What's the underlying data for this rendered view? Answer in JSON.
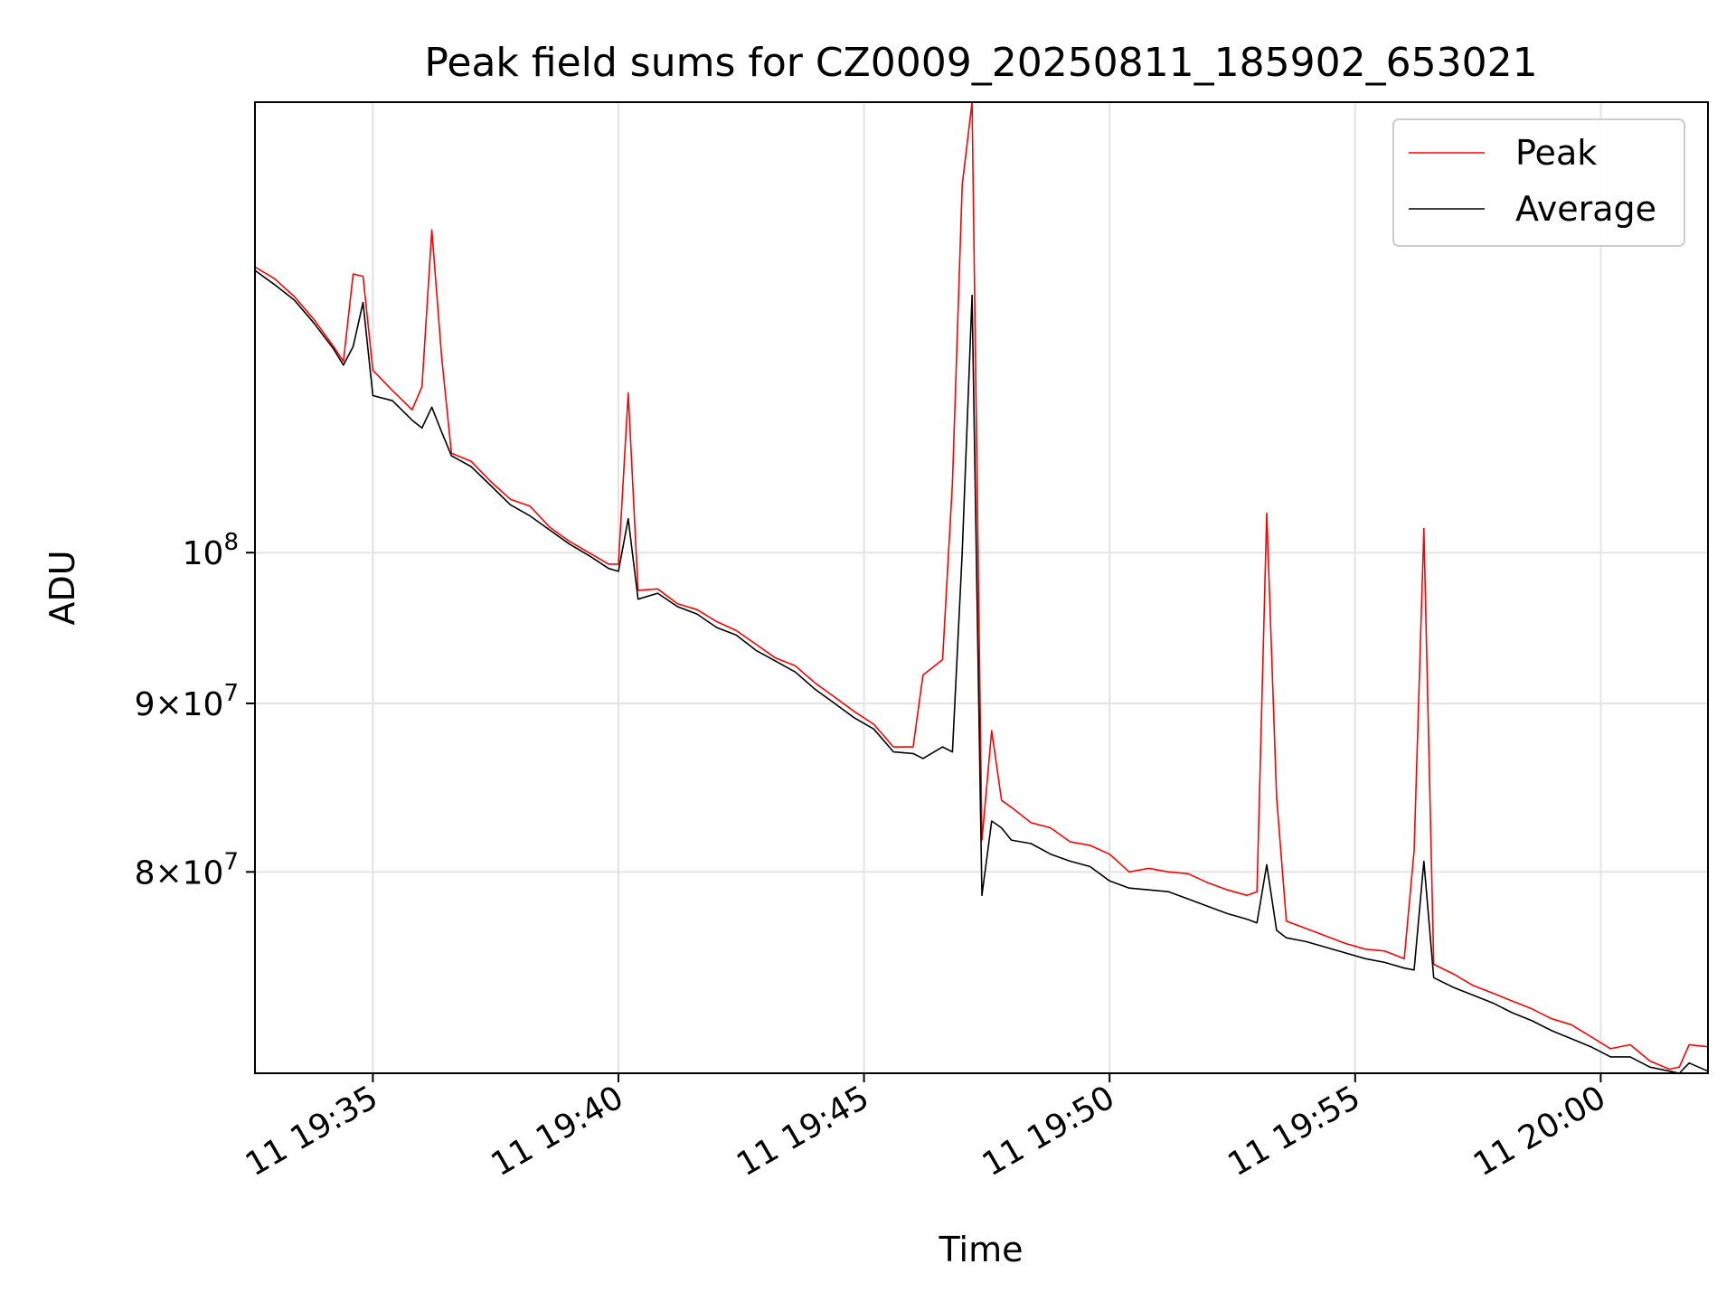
{
  "chart_data": {
    "type": "line",
    "title": "Peak field sums for CZ0009_20250811_185902_653021",
    "xlabel": "Time",
    "ylabel": "ADU",
    "yscale": "log",
    "grid": true,
    "legend_position": "top-right",
    "xlim": [
      "11 19:32:36",
      "11 20:02:11"
    ],
    "ylim": [
      69500000,
      137000000
    ],
    "x_ticks": [
      "11 19:35",
      "11 19:40",
      "11 19:45",
      "11 19:50",
      "11 19:55",
      "11 20:00"
    ],
    "y_ticks": [
      {
        "value": 100000000,
        "base": "10",
        "exp": "8"
      },
      {
        "value": 90000000,
        "mantissa": "9",
        "base": "10",
        "exp": "7"
      },
      {
        "value": 80000000,
        "mantissa": "8",
        "base": "10",
        "exp": "7"
      }
    ],
    "series": [
      {
        "name": "Peak",
        "color": "#ff0000",
        "points": [
          [
            "11 19:32:36",
            122100000
          ],
          [
            "11 19:33:00",
            121100000
          ],
          [
            "11 19:33:24",
            119600000
          ],
          [
            "11 19:33:48",
            117700000
          ],
          [
            "11 19:34:12",
            115500000
          ],
          [
            "11 19:34:24",
            114300000
          ],
          [
            "11 19:34:36",
            121500000
          ],
          [
            "11 19:34:48",
            121300000
          ],
          [
            "11 19:35:00",
            113600000
          ],
          [
            "11 19:35:24",
            112000000
          ],
          [
            "11 19:35:48",
            110500000
          ],
          [
            "11 19:36:00",
            112300000
          ],
          [
            "11 19:36:12",
            125300000
          ],
          [
            "11 19:36:24",
            114700000
          ],
          [
            "11 19:36:36",
            107200000
          ],
          [
            "11 19:37:00",
            106600000
          ],
          [
            "11 19:37:24",
            105100000
          ],
          [
            "11 19:37:48",
            103800000
          ],
          [
            "11 19:38:12",
            103300000
          ],
          [
            "11 19:38:36",
            101800000
          ],
          [
            "11 19:39:00",
            100800000
          ],
          [
            "11 19:39:24",
            100000000
          ],
          [
            "11 19:39:48",
            99200000
          ],
          [
            "11 19:40:00",
            99200000
          ],
          [
            "11 19:40:12",
            111800000
          ],
          [
            "11 19:40:24",
            97400000
          ],
          [
            "11 19:40:48",
            97500000
          ],
          [
            "11 19:41:12",
            96500000
          ],
          [
            "11 19:41:36",
            96100000
          ],
          [
            "11 19:42:00",
            95300000
          ],
          [
            "11 19:42:24",
            94700000
          ],
          [
            "11 19:42:48",
            93800000
          ],
          [
            "11 19:43:12",
            92900000
          ],
          [
            "11 19:43:36",
            92400000
          ],
          [
            "11 19:44:00",
            91300000
          ],
          [
            "11 19:44:24",
            90400000
          ],
          [
            "11 19:44:48",
            89500000
          ],
          [
            "11 19:45:12",
            88700000
          ],
          [
            "11 19:45:36",
            87300000
          ],
          [
            "11 19:46:00",
            87300000
          ],
          [
            "11 19:46:12",
            91800000
          ],
          [
            "11 19:46:36",
            92800000
          ],
          [
            "11 19:46:48",
            105000000
          ],
          [
            "11 19:47:00",
            129300000
          ],
          [
            "11 19:47:12",
            137000000
          ],
          [
            "11 19:47:24",
            81800000
          ],
          [
            "11 19:47:36",
            88300000
          ],
          [
            "11 19:47:48",
            84100000
          ],
          [
            "11 19:48:00",
            83700000
          ],
          [
            "11 19:48:24",
            82800000
          ],
          [
            "11 19:48:48",
            82500000
          ],
          [
            "11 19:49:12",
            81700000
          ],
          [
            "11 19:49:36",
            81500000
          ],
          [
            "11 19:50:00",
            81000000
          ],
          [
            "11 19:50:24",
            80000000
          ],
          [
            "11 19:50:48",
            80200000
          ],
          [
            "11 19:51:12",
            80000000
          ],
          [
            "11 19:51:36",
            79900000
          ],
          [
            "11 19:52:00",
            79400000
          ],
          [
            "11 19:52:24",
            79000000
          ],
          [
            "11 19:52:48",
            78700000
          ],
          [
            "11 19:53:00",
            78900000
          ],
          [
            "11 19:53:12",
            102800000
          ],
          [
            "11 19:53:24",
            84300000
          ],
          [
            "11 19:53:36",
            77300000
          ],
          [
            "11 19:54:00",
            76900000
          ],
          [
            "11 19:54:24",
            76500000
          ],
          [
            "11 19:54:48",
            76100000
          ],
          [
            "11 19:55:12",
            75800000
          ],
          [
            "11 19:55:36",
            75700000
          ],
          [
            "11 19:56:00",
            75300000
          ],
          [
            "11 19:56:12",
            81200000
          ],
          [
            "11 19:56:24",
            101700000
          ],
          [
            "11 19:56:36",
            75000000
          ],
          [
            "11 19:57:00",
            74500000
          ],
          [
            "11 19:57:24",
            73900000
          ],
          [
            "11 19:57:48",
            73500000
          ],
          [
            "11 19:58:12",
            73100000
          ],
          [
            "11 19:58:36",
            72700000
          ],
          [
            "11 19:59:00",
            72200000
          ],
          [
            "11 19:59:24",
            71900000
          ],
          [
            "11 19:59:48",
            71300000
          ],
          [
            "11 20:00:12",
            70700000
          ],
          [
            "11 20:00:36",
            70900000
          ],
          [
            "11 20:01:00",
            70100000
          ],
          [
            "11 20:01:24",
            69700000
          ],
          [
            "11 20:01:36",
            69800000
          ],
          [
            "11 20:01:48",
            70900000
          ],
          [
            "11 20:02:11",
            70800000
          ]
        ]
      },
      {
        "name": "Average",
        "color": "#000000",
        "points": [
          [
            "11 19:32:36",
            121800000
          ],
          [
            "11 19:33:00",
            120600000
          ],
          [
            "11 19:33:24",
            119300000
          ],
          [
            "11 19:33:48",
            117400000
          ],
          [
            "11 19:34:12",
            115300000
          ],
          [
            "11 19:34:24",
            114000000
          ],
          [
            "11 19:34:36",
            115500000
          ],
          [
            "11 19:34:48",
            119100000
          ],
          [
            "11 19:35:00",
            111600000
          ],
          [
            "11 19:35:24",
            111200000
          ],
          [
            "11 19:35:48",
            109700000
          ],
          [
            "11 19:36:00",
            109100000
          ],
          [
            "11 19:36:12",
            110700000
          ],
          [
            "11 19:36:24",
            108800000
          ],
          [
            "11 19:36:36",
            107000000
          ],
          [
            "11 19:37:00",
            106200000
          ],
          [
            "11 19:37:24",
            104800000
          ],
          [
            "11 19:37:48",
            103400000
          ],
          [
            "11 19:38:12",
            102600000
          ],
          [
            "11 19:38:36",
            101600000
          ],
          [
            "11 19:39:00",
            100600000
          ],
          [
            "11 19:39:24",
            99800000
          ],
          [
            "11 19:39:48",
            98900000
          ],
          [
            "11 19:40:00",
            98700000
          ],
          [
            "11 19:40:12",
            102400000
          ],
          [
            "11 19:40:24",
            96800000
          ],
          [
            "11 19:40:48",
            97200000
          ],
          [
            "11 19:41:12",
            96300000
          ],
          [
            "11 19:41:36",
            95800000
          ],
          [
            "11 19:42:00",
            94900000
          ],
          [
            "11 19:42:24",
            94400000
          ],
          [
            "11 19:42:48",
            93400000
          ],
          [
            "11 19:43:12",
            92700000
          ],
          [
            "11 19:43:36",
            92000000
          ],
          [
            "11 19:44:00",
            90900000
          ],
          [
            "11 19:44:24",
            90000000
          ],
          [
            "11 19:44:48",
            89100000
          ],
          [
            "11 19:45:12",
            88400000
          ],
          [
            "11 19:45:36",
            87000000
          ],
          [
            "11 19:46:00",
            86900000
          ],
          [
            "11 19:46:12",
            86600000
          ],
          [
            "11 19:46:36",
            87300000
          ],
          [
            "11 19:46:48",
            87000000
          ],
          [
            "11 19:47:00",
            100000000
          ],
          [
            "11 19:47:12",
            119700000
          ],
          [
            "11 19:47:24",
            78700000
          ],
          [
            "11 19:47:36",
            82900000
          ],
          [
            "11 19:47:48",
            82500000
          ],
          [
            "11 19:48:00",
            81800000
          ],
          [
            "11 19:48:24",
            81600000
          ],
          [
            "11 19:48:48",
            81000000
          ],
          [
            "11 19:49:12",
            80600000
          ],
          [
            "11 19:49:36",
            80300000
          ],
          [
            "11 19:50:00",
            79500000
          ],
          [
            "11 19:50:24",
            79100000
          ],
          [
            "11 19:50:48",
            79000000
          ],
          [
            "11 19:51:12",
            78900000
          ],
          [
            "11 19:51:36",
            78500000
          ],
          [
            "11 19:52:00",
            78100000
          ],
          [
            "11 19:52:24",
            77700000
          ],
          [
            "11 19:52:48",
            77400000
          ],
          [
            "11 19:53:00",
            77200000
          ],
          [
            "11 19:53:12",
            80400000
          ],
          [
            "11 19:53:24",
            76800000
          ],
          [
            "11 19:53:36",
            76400000
          ],
          [
            "11 19:54:00",
            76200000
          ],
          [
            "11 19:54:24",
            75900000
          ],
          [
            "11 19:54:48",
            75600000
          ],
          [
            "11 19:55:12",
            75300000
          ],
          [
            "11 19:55:36",
            75100000
          ],
          [
            "11 19:56:00",
            74800000
          ],
          [
            "11 19:56:12",
            74700000
          ],
          [
            "11 19:56:24",
            80600000
          ],
          [
            "11 19:56:36",
            74300000
          ],
          [
            "11 19:57:00",
            73800000
          ],
          [
            "11 19:57:24",
            73400000
          ],
          [
            "11 19:57:48",
            73000000
          ],
          [
            "11 19:58:12",
            72500000
          ],
          [
            "11 19:58:36",
            72100000
          ],
          [
            "11 19:59:00",
            71600000
          ],
          [
            "11 19:59:24",
            71200000
          ],
          [
            "11 19:59:48",
            70800000
          ],
          [
            "11 20:00:12",
            70300000
          ],
          [
            "11 20:00:36",
            70300000
          ],
          [
            "11 20:01:00",
            69800000
          ],
          [
            "11 20:01:24",
            69600000
          ],
          [
            "11 20:01:36",
            69500000
          ],
          [
            "11 20:01:48",
            70000000
          ],
          [
            "11 20:02:11",
            69600000
          ]
        ]
      }
    ]
  }
}
